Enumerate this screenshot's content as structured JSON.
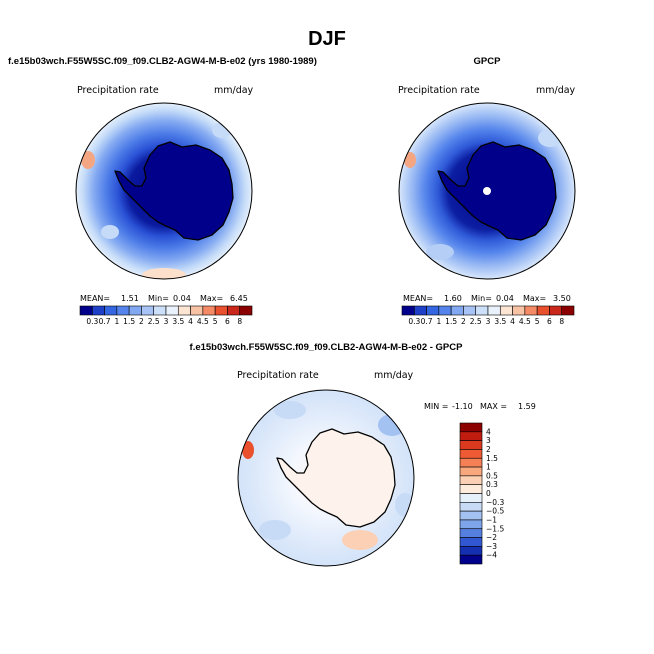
{
  "figure": {
    "title": "DJF",
    "shared_units": "mm/day"
  },
  "chart_data": [
    {
      "type": "heatmap",
      "projection": "south-polar-stereographic",
      "title": "f.e15b03wch.F55W5SC.f09_f09.CLB2-AGW4-M-B-e02 (yrs 1980-1989)",
      "variable_label": "Precipitation rate",
      "units": "mm/day",
      "stats": [
        {
          "label": "MEAN=",
          "value": "1.51"
        },
        {
          "label": "Min=",
          "value": "0.04"
        },
        {
          "label": "Max=",
          "value": "6.45"
        }
      ],
      "colorbar": {
        "orientation": "horizontal",
        "tick_labels": [
          "0.3",
          "0.7",
          "1",
          "1.5",
          "2",
          "2.5",
          "3",
          "3.5",
          "4",
          "4.5",
          "5",
          "6",
          "8"
        ],
        "colors": [
          "#00008b",
          "#1e3fc8",
          "#3366e0",
          "#5585ec",
          "#82a8f2",
          "#a8c4f6",
          "#cde0fa",
          "#e9f2fc",
          "#fde5d3",
          "#f8c3a5",
          "#f48a66",
          "#e8502e",
          "#c9281a",
          "#8b0000"
        ]
      },
      "pole_marker": false
    },
    {
      "type": "heatmap",
      "projection": "south-polar-stereographic",
      "title": "GPCP",
      "variable_label": "Precipitation rate",
      "units": "mm/day",
      "stats": [
        {
          "label": "MEAN=",
          "value": "1.60"
        },
        {
          "label": "Min=",
          "value": "0.04"
        },
        {
          "label": "Max=",
          "value": "3.50"
        }
      ],
      "colorbar": {
        "orientation": "horizontal",
        "tick_labels": [
          "0.3",
          "0.7",
          "1",
          "1.5",
          "2",
          "2.5",
          "3",
          "3.5",
          "4",
          "4.5",
          "5",
          "6",
          "8"
        ],
        "colors": [
          "#00008b",
          "#1e3fc8",
          "#3366e0",
          "#5585ec",
          "#82a8f2",
          "#a8c4f6",
          "#cde0fa",
          "#e9f2fc",
          "#fde5d3",
          "#f8c3a5",
          "#f48a66",
          "#e8502e",
          "#c9281a",
          "#8b0000"
        ]
      },
      "pole_marker": true
    },
    {
      "type": "heatmap",
      "projection": "south-polar-stereographic",
      "title": "f.e15b03wch.F55W5SC.f09_f09.CLB2-AGW4-M-B-e02 - GPCP",
      "variable_label": "Precipitation rate",
      "units": "mm/day",
      "stats": [
        {
          "label": "MIN =",
          "value": "-1.10"
        },
        {
          "label": "MAX =",
          "value": "1.59"
        }
      ],
      "colorbar": {
        "orientation": "vertical",
        "tick_labels": [
          "4",
          "3",
          "2",
          "1.5",
          "1",
          "0.5",
          "0.3",
          "0",
          "−0.3",
          "−0.5",
          "−1",
          "−1.5",
          "−2",
          "−3",
          "−4"
        ],
        "colors": [
          "#8b0000",
          "#c01c10",
          "#dc3a1f",
          "#ee5a34",
          "#f68056",
          "#f9a87e",
          "#fbd0b4",
          "#fdebdc",
          "#e6f0fb",
          "#c7dbf6",
          "#a3c1f1",
          "#7ea4ea",
          "#5680e0",
          "#3158d2",
          "#1430b0",
          "#00008b"
        ]
      },
      "pole_marker": false
    }
  ]
}
